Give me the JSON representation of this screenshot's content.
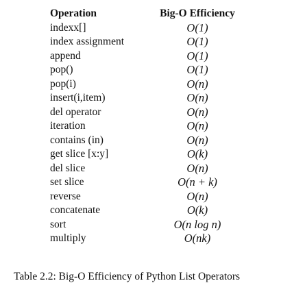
{
  "table": {
    "header": [
      "Operation",
      "Big-O Efficiency"
    ],
    "rows": [
      [
        "indexx[]",
        "O(1)"
      ],
      [
        "index assignment",
        "O(1)"
      ],
      [
        "append",
        "O(1)"
      ],
      [
        "pop()",
        "O(1)"
      ],
      [
        "pop(i)",
        "O(n)"
      ],
      [
        "insert(i,item)",
        "O(n)"
      ],
      [
        "del operator",
        "O(n)"
      ],
      [
        "iteration",
        "O(n)"
      ],
      [
        "contains (in)",
        "O(n)"
      ],
      [
        "get slice [x:y]",
        "O(k)"
      ],
      [
        "del slice",
        "O(n)"
      ],
      [
        "set slice",
        "O(n + k)"
      ],
      [
        "reverse",
        "O(n)"
      ],
      [
        "concatenate",
        "O(k)"
      ],
      [
        "sort",
        "O(n log n)"
      ],
      [
        "multiply",
        "O(nk)"
      ]
    ],
    "caption": "Table 2.2: Big-O Efficiency of Python List Operators"
  }
}
